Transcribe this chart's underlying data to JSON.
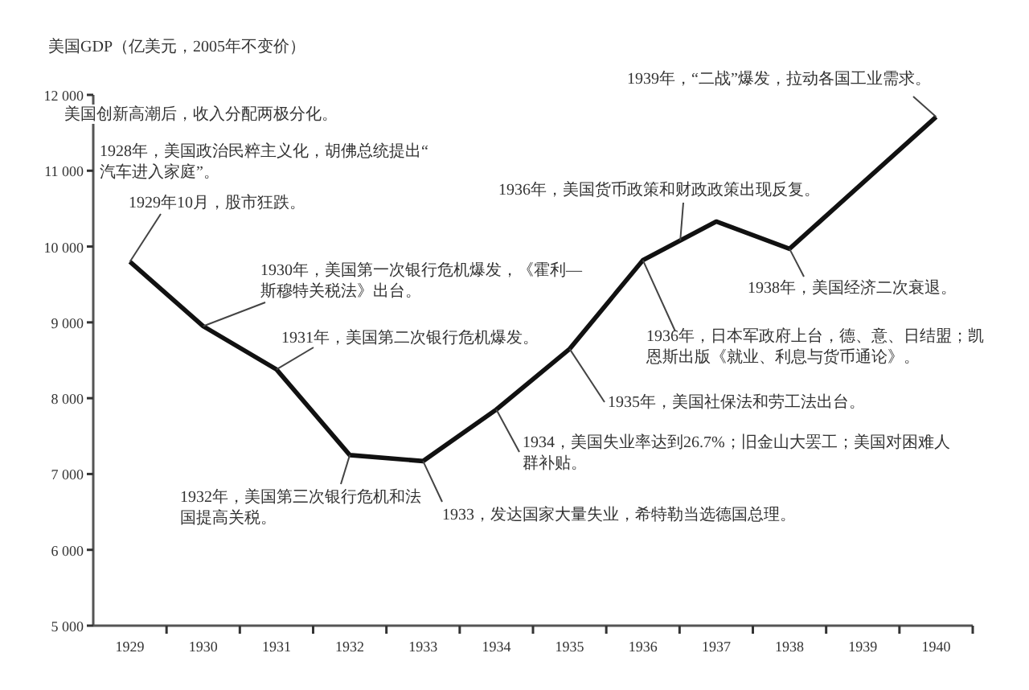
{
  "chart_data": {
    "type": "line",
    "title": "美国GDP（亿美元，2005年不变价）",
    "categories": [
      "1929",
      "1930",
      "1931",
      "1932",
      "1933",
      "1934",
      "1935",
      "1936",
      "1937",
      "1938",
      "1939",
      "1940"
    ],
    "values": [
      9800,
      8950,
      8380,
      7250,
      7170,
      7850,
      8650,
      9820,
      10330,
      9970,
      10840,
      11710
    ],
    "color": "#111111",
    "ylim": [
      5000,
      12000
    ],
    "yticks": [
      {
        "value": 5000,
        "label": "5 000"
      },
      {
        "value": 6000,
        "label": "6 000"
      },
      {
        "value": 7000,
        "label": "7 000"
      },
      {
        "value": 8000,
        "label": "8 000"
      },
      {
        "value": 9000,
        "label": "9 000"
      },
      {
        "value": 10000,
        "label": "10 000"
      },
      {
        "value": 11000,
        "label": "11 000"
      },
      {
        "value": 12000,
        "label": "12 000"
      }
    ],
    "grid": false,
    "marker": "none",
    "line_style": "solid",
    "annotations": [
      "美国创新高潮后，收入分配两极分化。",
      "1928年，美国政治民粹主义化，胡佛总统提出“汽车进入家庭”。",
      {
        "text": "1929年10月，股市狂跌。",
        "x": "1929",
        "y": 9800
      },
      {
        "text": "1930年，美国第一次银行危机爆发，《霍利—斯穆特关税法》出台。",
        "x": "1930",
        "y": 8950
      },
      {
        "text": "1931年，美国第二次银行危机爆发。",
        "x": "1931",
        "y": 8380
      },
      {
        "text": "1932年，美国第三次银行危机和法国提高关税。",
        "x": "1932",
        "y": 7250
      },
      {
        "text": "1933，发达国家大量失业，希特勒当选德国总理。",
        "x": "1933",
        "y": 7170
      },
      {
        "text": "1934，美国失业率达到26.7%；旧金山大罢工；美国对困难人群补贴。",
        "x": "1934",
        "y": 7850
      },
      {
        "text": "1935年，美国社保法和劳工法出台。",
        "x": "1935",
        "y": 8650
      },
      {
        "text": "1936年，日本军政府上台，德、意、日结盟；凯恩斯出版《就业、利息与货币通论》。",
        "x": "1936",
        "y": 9820
      },
      {
        "text": "1936年，美国货币政策和财政政策出现反复。",
        "y": 10080
      },
      {
        "text": "1938年，美国经济二次衰退。",
        "x": "1938",
        "y": 9970
      },
      {
        "text": "1939年，“二战”爆发，拉动各国工业需求。",
        "x": "1940",
        "y": 11710
      }
    ]
  }
}
